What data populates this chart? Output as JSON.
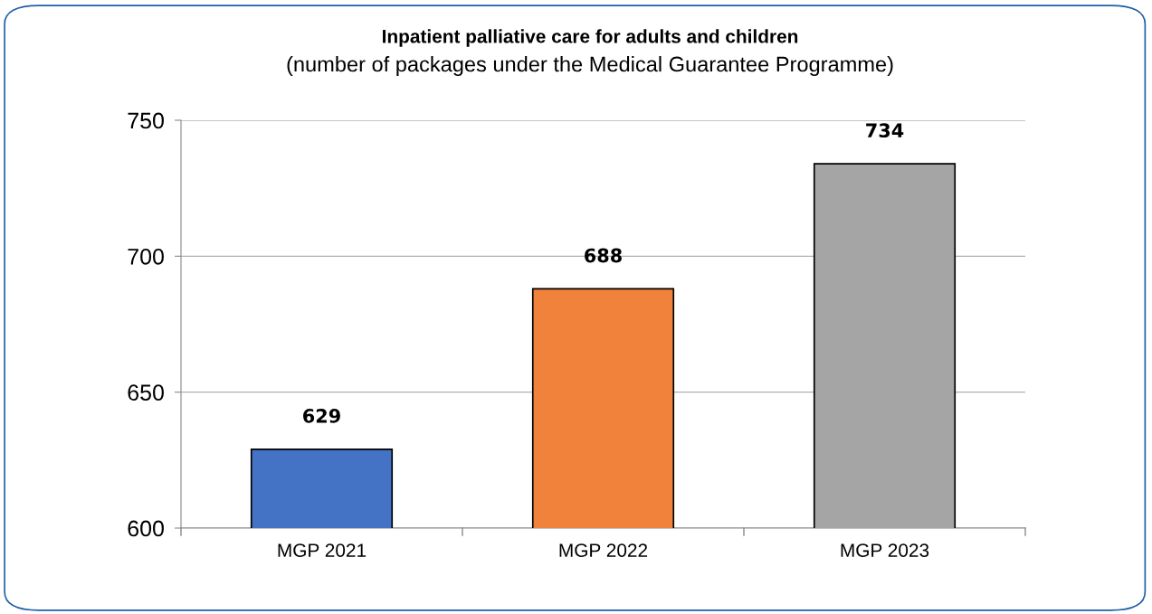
{
  "chart_data": {
    "type": "bar",
    "title": "Inpatient palliative care for adults and children",
    "subtitle": "(number of packages under the Medical Guarantee Programme)",
    "categories": [
      "MGP 2021",
      "MGP 2022",
      "MGP 2023"
    ],
    "values": [
      629,
      688,
      734
    ],
    "colors": [
      "#4472c4",
      "#f0823c",
      "#a5a5a5"
    ],
    "ylim": [
      600,
      750
    ],
    "yticks": [
      600,
      650,
      700,
      750
    ],
    "grid": "y",
    "data_labels": true
  }
}
